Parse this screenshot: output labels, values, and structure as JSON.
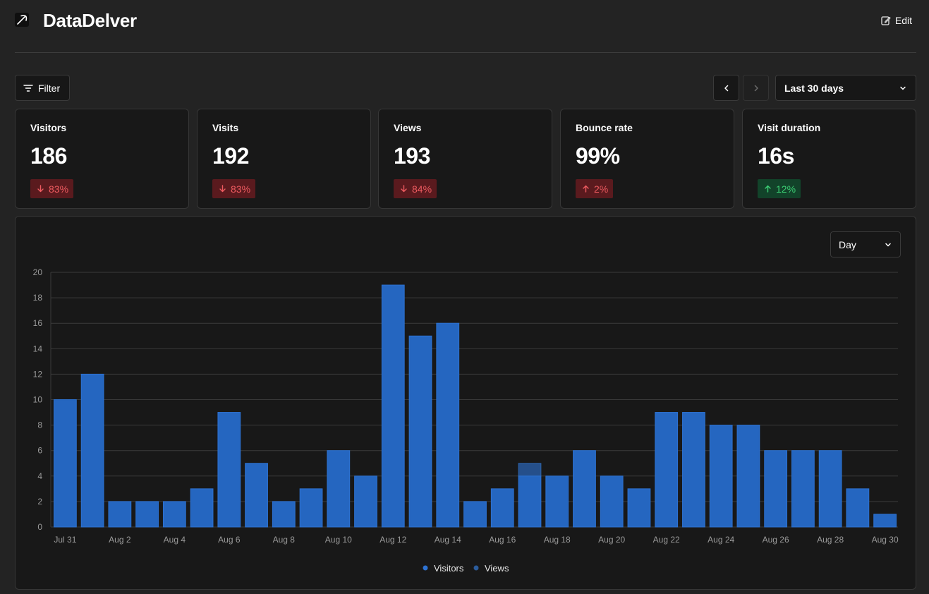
{
  "header": {
    "app_title": "DataDelver",
    "edit_label": "Edit"
  },
  "toolbar": {
    "filter_label": "Filter",
    "range_value": "Last 30 days"
  },
  "metrics": [
    {
      "label": "Visitors",
      "value": "186",
      "change": "83%",
      "direction": "down",
      "tone": "bad"
    },
    {
      "label": "Visits",
      "value": "192",
      "change": "83%",
      "direction": "down",
      "tone": "bad"
    },
    {
      "label": "Views",
      "value": "193",
      "change": "84%",
      "direction": "down",
      "tone": "bad"
    },
    {
      "label": "Bounce rate",
      "value": "99%",
      "change": "2%",
      "direction": "up",
      "tone": "bad"
    },
    {
      "label": "Visit duration",
      "value": "16s",
      "change": "12%",
      "direction": "up",
      "tone": "good"
    }
  ],
  "chart_panel": {
    "interval_value": "Day"
  },
  "colors": {
    "bar": "#2566c0",
    "bar_dark": "#254f8a",
    "grid": "#3a3a3a",
    "axis_text": "#9a9a9a"
  },
  "chart_data": {
    "type": "bar",
    "categories": [
      "Jul 31",
      "Aug 1",
      "Aug 2",
      "Aug 3",
      "Aug 4",
      "Aug 5",
      "Aug 6",
      "Aug 7",
      "Aug 8",
      "Aug 9",
      "Aug 10",
      "Aug 11",
      "Aug 12",
      "Aug 13",
      "Aug 14",
      "Aug 15",
      "Aug 16",
      "Aug 17",
      "Aug 18",
      "Aug 19",
      "Aug 20",
      "Aug 21",
      "Aug 22",
      "Aug 23",
      "Aug 24",
      "Aug 25",
      "Aug 26",
      "Aug 27",
      "Aug 28",
      "Aug 29",
      "Aug 30"
    ],
    "tick_labels": [
      "Jul 31",
      "Aug 2",
      "Aug 4",
      "Aug 6",
      "Aug 8",
      "Aug 10",
      "Aug 12",
      "Aug 14",
      "Aug 16",
      "Aug 18",
      "Aug 20",
      "Aug 22",
      "Aug 24",
      "Aug 26",
      "Aug 28",
      "Aug 30"
    ],
    "series": [
      {
        "name": "Visitors",
        "values": [
          10,
          12,
          2,
          2,
          2,
          3,
          9,
          5,
          2,
          3,
          6,
          4,
          19,
          15,
          16,
          2,
          3,
          4,
          4,
          6,
          4,
          3,
          9,
          9,
          8,
          8,
          6,
          6,
          6,
          3,
          1
        ]
      },
      {
        "name": "Views",
        "values": [
          10,
          12,
          2,
          2,
          2,
          3,
          9,
          5,
          2,
          3,
          6,
          4,
          19,
          15,
          16,
          2,
          3,
          5,
          4,
          6,
          4,
          3,
          9,
          9,
          8,
          8,
          6,
          6,
          6,
          3,
          1
        ]
      }
    ],
    "y_ticks": [
      0,
      2,
      4,
      6,
      8,
      10,
      12,
      14,
      16,
      18,
      20
    ],
    "ylim": [
      0,
      20
    ],
    "grid": true,
    "legend": "bottom-center"
  }
}
